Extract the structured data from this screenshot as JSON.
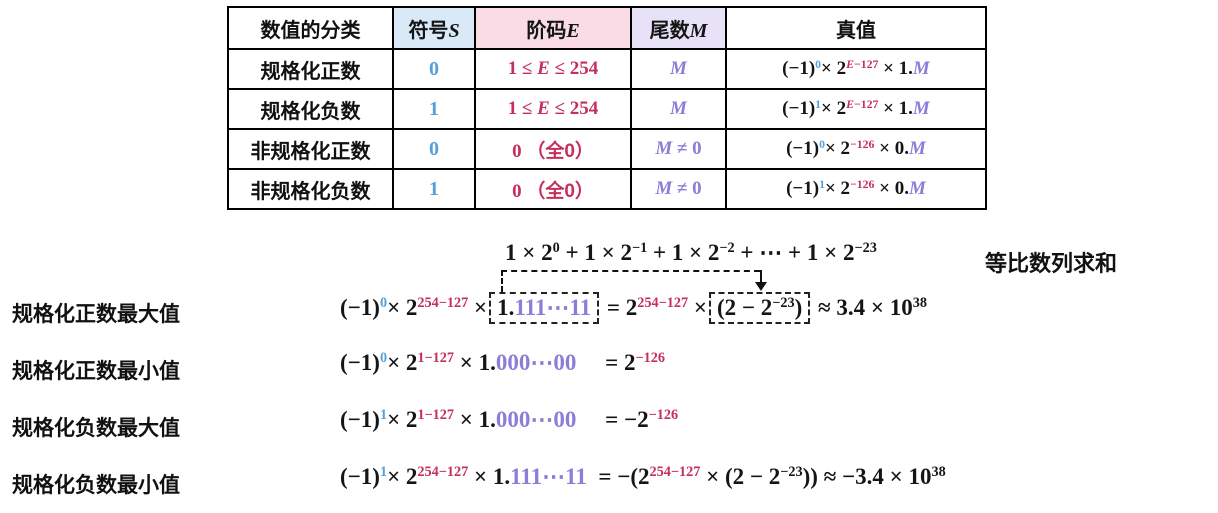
{
  "colors": {
    "k": "#151515",
    "b": "#56a0da",
    "r": "#c5305a",
    "p": "#8b7dd8",
    "bg_sign": "#d9e9f8",
    "bg_exp": "#fadce6",
    "bg_man": "#e7e2f8"
  },
  "table": {
    "headers": {
      "classification": "数值的分类",
      "sign": [
        {
          "t": "符号",
          "f": "cn"
        },
        {
          "t": "S",
          "i": 1
        }
      ],
      "exponent": [
        {
          "t": "阶码",
          "f": "cn"
        },
        {
          "t": "E",
          "i": 1
        }
      ],
      "mantissa": [
        {
          "t": "尾数",
          "f": "cn"
        },
        {
          "t": "M",
          "i": 1
        }
      ],
      "truth": "真值"
    },
    "rows": [
      {
        "label": "规格化正数",
        "sign": [
          {
            "t": "0",
            "c": "b"
          }
        ],
        "exp": [
          {
            "t": "1 ≤ ",
            "c": "r"
          },
          {
            "t": "E",
            "c": "r",
            "i": 1
          },
          {
            "t": " ≤ 254",
            "c": "r"
          }
        ],
        "man": [
          {
            "t": "M",
            "c": "p",
            "i": 1
          }
        ],
        "truth": [
          {
            "t": "(−1)"
          },
          {
            "t": "0",
            "c": "b",
            "s": 1
          },
          {
            "t": "× 2"
          },
          {
            "t": "E",
            "c": "r",
            "s": 1,
            "i": 1
          },
          {
            "t": "−127",
            "c": "r",
            "s": 1
          },
          {
            "t": " × 1."
          },
          {
            "t": "M",
            "c": "p",
            "i": 1
          }
        ]
      },
      {
        "label": "规格化负数",
        "sign": [
          {
            "t": "1",
            "c": "b"
          }
        ],
        "exp": [
          {
            "t": "1 ≤ ",
            "c": "r"
          },
          {
            "t": "E",
            "c": "r",
            "i": 1
          },
          {
            "t": " ≤ 254",
            "c": "r"
          }
        ],
        "man": [
          {
            "t": "M",
            "c": "p",
            "i": 1
          }
        ],
        "truth": [
          {
            "t": "(−1)"
          },
          {
            "t": "1",
            "c": "b",
            "s": 1
          },
          {
            "t": "× 2"
          },
          {
            "t": "E",
            "c": "r",
            "s": 1,
            "i": 1
          },
          {
            "t": "−127",
            "c": "r",
            "s": 1
          },
          {
            "t": " × 1."
          },
          {
            "t": "M",
            "c": "p",
            "i": 1
          }
        ]
      },
      {
        "label": "非规格化正数",
        "sign": [
          {
            "t": "0",
            "c": "b"
          }
        ],
        "exp": [
          {
            "t": "0 ",
            "c": "r"
          },
          {
            "t": "（全0）",
            "c": "r",
            "f": "cn"
          }
        ],
        "man": [
          {
            "t": "M",
            "c": "p",
            "i": 1
          },
          {
            "t": " ≠ 0",
            "c": "p"
          }
        ],
        "truth": [
          {
            "t": "(−1)"
          },
          {
            "t": "0",
            "c": "b",
            "s": 1
          },
          {
            "t": "× 2"
          },
          {
            "t": "−126",
            "c": "r",
            "s": 1
          },
          {
            "t": " × 0."
          },
          {
            "t": "M",
            "c": "p",
            "i": 1
          }
        ]
      },
      {
        "label": "非规格化负数",
        "sign": [
          {
            "t": "1",
            "c": "b"
          }
        ],
        "exp": [
          {
            "t": "0 ",
            "c": "r"
          },
          {
            "t": "（全0）",
            "c": "r",
            "f": "cn"
          }
        ],
        "man": [
          {
            "t": "M",
            "c": "p",
            "i": 1
          },
          {
            "t": " ≠ 0",
            "c": "p"
          }
        ],
        "truth": [
          {
            "t": "(−1)"
          },
          {
            "t": "1",
            "c": "b",
            "s": 1
          },
          {
            "t": "× 2"
          },
          {
            "t": "−126",
            "c": "r",
            "s": 1
          },
          {
            "t": " × 0."
          },
          {
            "t": "M",
            "c": "p",
            "i": 1
          }
        ]
      }
    ]
  },
  "geometric_series": {
    "sum_formula": [
      {
        "t": "1 × 2"
      },
      {
        "t": "0",
        "s": 1
      },
      {
        "t": " + 1 × 2"
      },
      {
        "t": "−1",
        "s": 1
      },
      {
        "t": " + 1 × 2"
      },
      {
        "t": "−2",
        "s": 1
      },
      {
        "t": " + ⋯ + 1 × 2"
      },
      {
        "t": "−23",
        "s": 1
      }
    ],
    "label": "等比数列求和"
  },
  "lines": [
    {
      "label": "规格化正数最大值",
      "formula": [
        {
          "t": "(−1)"
        },
        {
          "t": "0",
          "c": "b",
          "s": 1
        },
        {
          "t": "× 2"
        },
        {
          "t": "254−127",
          "c": "r",
          "s": 1
        },
        {
          "t": " ×"
        },
        {
          "box": [
            {
              "t": "1."
            },
            {
              "t": "111⋯11",
              "c": "p"
            }
          ],
          "bid": "mantissa-box"
        },
        {
          "t": " = 2"
        },
        {
          "t": "254−127",
          "c": "r",
          "s": 1
        },
        {
          "t": " ×"
        },
        {
          "box": [
            {
              "t": "(2 − 2"
            },
            {
              "t": "−23",
              "s": 1
            },
            {
              "t": ")"
            }
          ],
          "bid": "geo-box"
        },
        {
          "t": " ≈ 3.4 × 10"
        },
        {
          "t": "38",
          "s": 1
        }
      ]
    },
    {
      "label": "规格化正数最小值",
      "formula": [
        {
          "t": "(−1)"
        },
        {
          "t": "0",
          "c": "b",
          "s": 1
        },
        {
          "t": "× 2"
        },
        {
          "t": "1−127",
          "c": "r",
          "s": 1
        },
        {
          "t": " × 1."
        },
        {
          "t": "000⋯00",
          "c": "p"
        },
        {
          "t": "     = 2"
        },
        {
          "t": "−126",
          "c": "r",
          "s": 1
        }
      ]
    },
    {
      "label": "规格化负数最大值",
      "formula": [
        {
          "t": "(−1)"
        },
        {
          "t": "1",
          "c": "b",
          "s": 1
        },
        {
          "t": "× 2"
        },
        {
          "t": "1−127",
          "c": "r",
          "s": 1
        },
        {
          "t": " × 1."
        },
        {
          "t": "000⋯00",
          "c": "p"
        },
        {
          "t": "     = −2"
        },
        {
          "t": "−126",
          "c": "r",
          "s": 1
        }
      ]
    },
    {
      "label": "规格化负数最小值",
      "formula": [
        {
          "t": "(−1)"
        },
        {
          "t": "1",
          "c": "b",
          "s": 1
        },
        {
          "t": "× 2"
        },
        {
          "t": "254−127",
          "c": "r",
          "s": 1
        },
        {
          "t": " × 1."
        },
        {
          "t": "111⋯11",
          "c": "p"
        },
        {
          "t": "  = −(2"
        },
        {
          "t": "254−127",
          "c": "r",
          "s": 1
        },
        {
          "t": " × (2 − 2"
        },
        {
          "t": "−23",
          "s": 1
        },
        {
          "t": ")) ≈ −3.4 × 10"
        },
        {
          "t": "38",
          "s": 1
        }
      ]
    }
  ]
}
